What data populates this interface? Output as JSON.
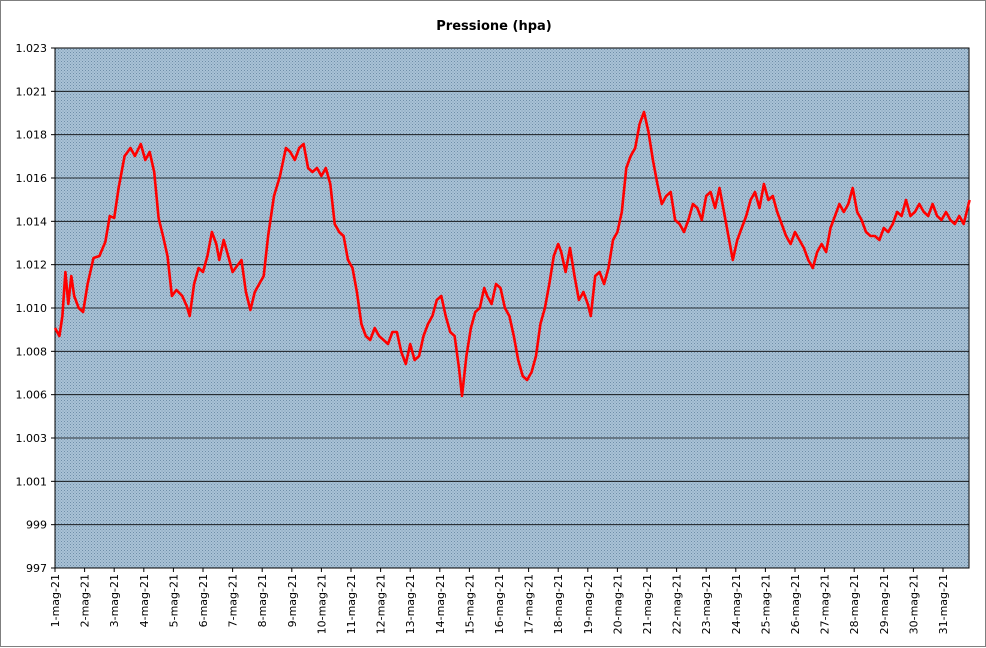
{
  "chart_data": {
    "type": "line",
    "title": "Pressione (hpa)",
    "xlabel": "",
    "ylabel": "",
    "ylim": [
      997,
      1023
    ],
    "y_tick_labels": [
      "997",
      "999",
      "1.001",
      "1.003",
      "1.006",
      "1.008",
      "1.010",
      "1.012",
      "1.014",
      "1.016",
      "1.018",
      "1.021",
      "1.023"
    ],
    "categories": [
      "1-mag-21",
      "2-mag-21",
      "3-mag-21",
      "4-mag-21",
      "5-mag-21",
      "6-mag-21",
      "7-mag-21",
      "8-mag-21",
      "9-mag-21",
      "10-mag-21",
      "11-mag-21",
      "12-mag-21",
      "13-mag-21",
      "14-mag-21",
      "15-mag-21",
      "16-mag-21",
      "17-mag-21",
      "18-mag-21",
      "19-mag-21",
      "20-mag-21",
      "21-mag-21",
      "22-mag-21",
      "23-mag-21",
      "24-mag-21",
      "25-mag-21",
      "26-mag-21",
      "27-mag-21",
      "28-mag-21",
      "29-mag-21",
      "30-mag-21",
      "31-mag-21"
    ],
    "x_range_days": [
      0,
      30.9
    ],
    "grid": true,
    "legend": "none",
    "series": [
      {
        "color": "#ff0000",
        "points": [
          [
            0.0,
            1009.0
          ],
          [
            0.15,
            1008.6
          ],
          [
            0.25,
            1009.6
          ],
          [
            0.35,
            1011.8
          ],
          [
            0.45,
            1010.2
          ],
          [
            0.55,
            1011.6
          ],
          [
            0.65,
            1010.6
          ],
          [
            0.8,
            1010.0
          ],
          [
            0.95,
            1009.8
          ],
          [
            1.1,
            1011.2
          ],
          [
            1.3,
            1012.5
          ],
          [
            1.5,
            1012.6
          ],
          [
            1.7,
            1013.3
          ],
          [
            1.85,
            1014.6
          ],
          [
            2.0,
            1014.5
          ],
          [
            2.15,
            1016.0
          ],
          [
            2.35,
            1017.6
          ],
          [
            2.55,
            1018.0
          ],
          [
            2.7,
            1017.6
          ],
          [
            2.9,
            1018.2
          ],
          [
            3.05,
            1017.4
          ],
          [
            3.2,
            1017.8
          ],
          [
            3.35,
            1016.8
          ],
          [
            3.5,
            1014.5
          ],
          [
            3.65,
            1013.6
          ],
          [
            3.8,
            1012.6
          ],
          [
            3.95,
            1010.6
          ],
          [
            4.1,
            1010.9
          ],
          [
            4.3,
            1010.6
          ],
          [
            4.45,
            1010.1
          ],
          [
            4.55,
            1009.6
          ],
          [
            4.7,
            1011.2
          ],
          [
            4.85,
            1012.0
          ],
          [
            5.0,
            1011.8
          ],
          [
            5.15,
            1012.6
          ],
          [
            5.3,
            1013.8
          ],
          [
            5.45,
            1013.2
          ],
          [
            5.55,
            1012.4
          ],
          [
            5.7,
            1013.4
          ],
          [
            5.85,
            1012.6
          ],
          [
            6.0,
            1011.8
          ],
          [
            6.15,
            1012.1
          ],
          [
            6.3,
            1012.4
          ],
          [
            6.45,
            1010.8
          ],
          [
            6.6,
            1009.9
          ],
          [
            6.75,
            1010.8
          ],
          [
            6.9,
            1011.2
          ],
          [
            7.05,
            1011.6
          ],
          [
            7.2,
            1013.6
          ],
          [
            7.4,
            1015.6
          ],
          [
            7.6,
            1016.6
          ],
          [
            7.8,
            1018.0
          ],
          [
            7.95,
            1017.8
          ],
          [
            8.1,
            1017.4
          ],
          [
            8.25,
            1018.0
          ],
          [
            8.4,
            1018.2
          ],
          [
            8.55,
            1017.0
          ],
          [
            8.7,
            1016.8
          ],
          [
            8.85,
            1017.0
          ],
          [
            9.0,
            1016.6
          ],
          [
            9.15,
            1017.0
          ],
          [
            9.3,
            1016.2
          ],
          [
            9.45,
            1014.2
          ],
          [
            9.6,
            1013.8
          ],
          [
            9.75,
            1013.6
          ],
          [
            9.9,
            1012.4
          ],
          [
            10.05,
            1012.0
          ],
          [
            10.2,
            1010.8
          ],
          [
            10.35,
            1009.2
          ],
          [
            10.5,
            1008.6
          ],
          [
            10.65,
            1008.4
          ],
          [
            10.8,
            1009.0
          ],
          [
            10.95,
            1008.6
          ],
          [
            11.1,
            1008.4
          ],
          [
            11.25,
            1008.2
          ],
          [
            11.4,
            1008.8
          ],
          [
            11.55,
            1008.8
          ],
          [
            11.7,
            1007.8
          ],
          [
            11.85,
            1007.2
          ],
          [
            12.0,
            1008.2
          ],
          [
            12.15,
            1007.4
          ],
          [
            12.3,
            1007.6
          ],
          [
            12.45,
            1008.6
          ],
          [
            12.6,
            1009.2
          ],
          [
            12.75,
            1009.6
          ],
          [
            12.9,
            1010.4
          ],
          [
            13.05,
            1010.6
          ],
          [
            13.2,
            1009.6
          ],
          [
            13.35,
            1008.8
          ],
          [
            13.5,
            1008.6
          ],
          [
            13.65,
            1007.0
          ],
          [
            13.75,
            1005.6
          ],
          [
            13.9,
            1007.6
          ],
          [
            14.05,
            1009.0
          ],
          [
            14.2,
            1009.8
          ],
          [
            14.35,
            1010.0
          ],
          [
            14.5,
            1011.0
          ],
          [
            14.6,
            1010.6
          ],
          [
            14.75,
            1010.2
          ],
          [
            14.9,
            1011.2
          ],
          [
            15.05,
            1011.0
          ],
          [
            15.2,
            1010.0
          ],
          [
            15.35,
            1009.6
          ],
          [
            15.5,
            1008.6
          ],
          [
            15.65,
            1007.4
          ],
          [
            15.8,
            1006.6
          ],
          [
            15.95,
            1006.4
          ],
          [
            16.1,
            1006.8
          ],
          [
            16.25,
            1007.6
          ],
          [
            16.4,
            1009.2
          ],
          [
            16.55,
            1010.0
          ],
          [
            16.7,
            1011.2
          ],
          [
            16.85,
            1012.6
          ],
          [
            17.0,
            1013.2
          ],
          [
            17.1,
            1012.8
          ],
          [
            17.25,
            1011.8
          ],
          [
            17.4,
            1013.0
          ],
          [
            17.55,
            1011.6
          ],
          [
            17.7,
            1010.4
          ],
          [
            17.85,
            1010.8
          ],
          [
            18.0,
            1010.2
          ],
          [
            18.1,
            1009.6
          ],
          [
            18.25,
            1011.6
          ],
          [
            18.4,
            1011.8
          ],
          [
            18.55,
            1011.2
          ],
          [
            18.7,
            1012.0
          ],
          [
            18.85,
            1013.4
          ],
          [
            19.0,
            1013.8
          ],
          [
            19.15,
            1014.8
          ],
          [
            19.3,
            1017.0
          ],
          [
            19.45,
            1017.6
          ],
          [
            19.6,
            1018.0
          ],
          [
            19.75,
            1019.2
          ],
          [
            19.9,
            1019.8
          ],
          [
            20.05,
            1018.8
          ],
          [
            20.2,
            1017.4
          ],
          [
            20.35,
            1016.2
          ],
          [
            20.5,
            1015.2
          ],
          [
            20.65,
            1015.6
          ],
          [
            20.8,
            1015.8
          ],
          [
            20.95,
            1014.4
          ],
          [
            21.1,
            1014.2
          ],
          [
            21.25,
            1013.8
          ],
          [
            21.4,
            1014.4
          ],
          [
            21.55,
            1015.2
          ],
          [
            21.7,
            1015.0
          ],
          [
            21.85,
            1014.4
          ],
          [
            22.0,
            1015.6
          ],
          [
            22.15,
            1015.8
          ],
          [
            22.3,
            1015.0
          ],
          [
            22.45,
            1016.0
          ],
          [
            22.6,
            1014.8
          ],
          [
            22.75,
            1013.6
          ],
          [
            22.9,
            1012.4
          ],
          [
            23.05,
            1013.4
          ],
          [
            23.2,
            1014.0
          ],
          [
            23.35,
            1014.6
          ],
          [
            23.5,
            1015.4
          ],
          [
            23.65,
            1015.8
          ],
          [
            23.8,
            1015.0
          ],
          [
            23.95,
            1016.2
          ],
          [
            24.1,
            1015.4
          ],
          [
            24.25,
            1015.6
          ],
          [
            24.4,
            1014.8
          ],
          [
            24.55,
            1014.2
          ],
          [
            24.7,
            1013.6
          ],
          [
            24.85,
            1013.2
          ],
          [
            25.0,
            1013.8
          ],
          [
            25.15,
            1013.4
          ],
          [
            25.3,
            1013.0
          ],
          [
            25.45,
            1012.4
          ],
          [
            25.6,
            1012.0
          ],
          [
            25.75,
            1012.8
          ],
          [
            25.9,
            1013.2
          ],
          [
            26.05,
            1012.8
          ],
          [
            26.2,
            1014.0
          ],
          [
            26.35,
            1014.6
          ],
          [
            26.5,
            1015.2
          ],
          [
            26.65,
            1014.8
          ],
          [
            26.8,
            1015.2
          ],
          [
            26.95,
            1016.0
          ],
          [
            27.1,
            1014.8
          ],
          [
            27.25,
            1014.4
          ],
          [
            27.4,
            1013.8
          ],
          [
            27.55,
            1013.6
          ],
          [
            27.7,
            1013.6
          ],
          [
            27.85,
            1013.4
          ],
          [
            28.0,
            1014.0
          ],
          [
            28.15,
            1013.8
          ],
          [
            28.3,
            1014.2
          ],
          [
            28.45,
            1014.8
          ],
          [
            28.6,
            1014.6
          ],
          [
            28.75,
            1015.4
          ],
          [
            28.9,
            1014.6
          ],
          [
            29.05,
            1014.8
          ],
          [
            29.2,
            1015.2
          ],
          [
            29.35,
            1014.8
          ],
          [
            29.5,
            1014.6
          ],
          [
            29.65,
            1015.2
          ],
          [
            29.8,
            1014.6
          ],
          [
            29.95,
            1014.4
          ],
          [
            30.1,
            1014.8
          ],
          [
            30.25,
            1014.4
          ],
          [
            30.4,
            1014.2
          ],
          [
            30.55,
            1014.6
          ],
          [
            30.7,
            1014.2
          ],
          [
            30.9,
            1015.4
          ]
        ]
      }
    ]
  }
}
